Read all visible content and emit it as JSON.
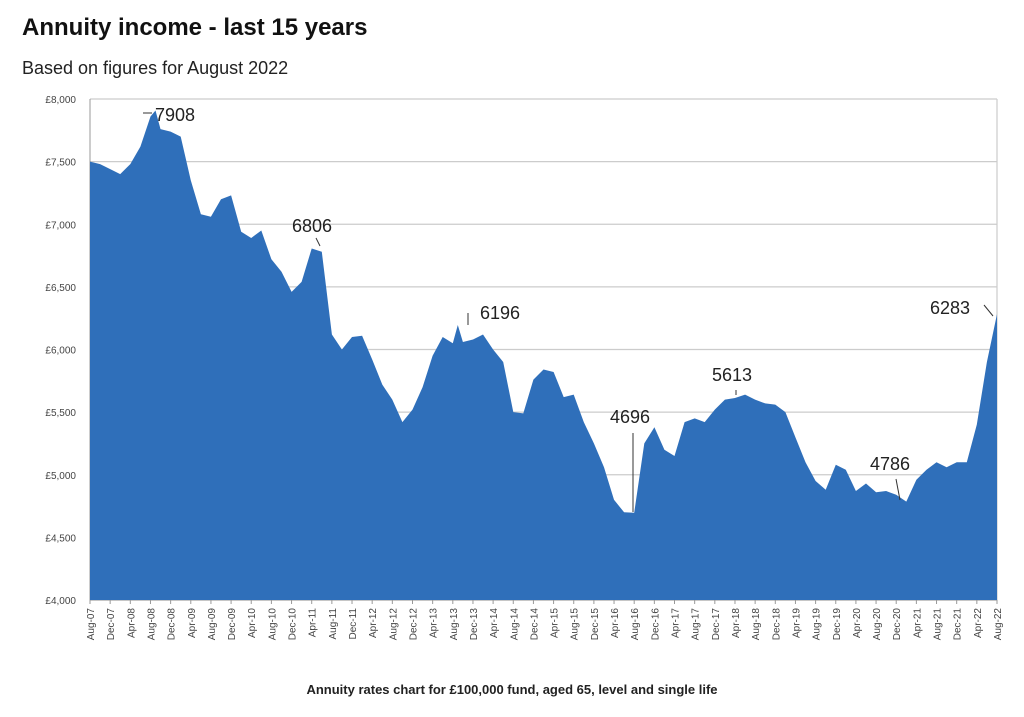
{
  "header": {
    "title": "Annuity income - last 15 years",
    "subtitle": "Based on figures for August 2022"
  },
  "caption": "Annuity rates chart for £100,000 fund, aged 65, level and single life",
  "colors": {
    "fill": "#2f6fba",
    "grid": "#cccccc",
    "axis": "#999999"
  },
  "chart_data": {
    "type": "area",
    "title": "Annuity income - last 15 years",
    "subtitle": "Based on figures for August 2022",
    "xlabel": "Annuity rates chart for £100,000 fund, aged 65, level and single life",
    "ylabel": "",
    "ylim": [
      4000,
      8000
    ],
    "grid": true,
    "legend": "none",
    "y_ticks": [
      "£4,000",
      "£4,500",
      "£5,000",
      "£5,500",
      "£6,000",
      "£6,500",
      "£7,000",
      "£7,500",
      "£8,000"
    ],
    "x_ticks": [
      "Aug-07",
      "Dec-07",
      "Apr-08",
      "Aug-08",
      "Dec-08",
      "Apr-09",
      "Aug-09",
      "Dec-09",
      "Apr-10",
      "Aug-10",
      "Dec-10",
      "Apr-11",
      "Aug-11",
      "Dec-11",
      "Apr-12",
      "Aug-12",
      "Dec-12",
      "Apr-13",
      "Aug-13",
      "Dec-13",
      "Apr-14",
      "Aug-14",
      "Dec-14",
      "Apr-15",
      "Aug-15",
      "Dec-15",
      "Apr-16",
      "Aug-16",
      "Dec-16",
      "Apr-17",
      "Aug-17",
      "Dec-17",
      "Apr-18",
      "Aug-18",
      "Dec-18",
      "Apr-19",
      "Aug-19",
      "Dec-19",
      "Apr-20",
      "Aug-20",
      "Dec-20",
      "Apr-21",
      "Aug-21",
      "Dec-21",
      "Apr-22",
      "Aug-22"
    ],
    "annotations": [
      {
        "label": "7908",
        "month_index": 13,
        "value": 7908
      },
      {
        "label": "6806",
        "month_index": 44,
        "value": 6806
      },
      {
        "label": "6196",
        "month_index": 73,
        "value": 6196
      },
      {
        "label": "4696",
        "month_index": 108,
        "value": 4696
      },
      {
        "label": "5613",
        "month_index": 128,
        "value": 5613
      },
      {
        "label": "4786",
        "month_index": 160,
        "value": 4786
      },
      {
        "label": "6283",
        "month_index": 180,
        "value": 6283
      }
    ],
    "x_months_from_aug07": [
      0,
      2,
      4,
      6,
      8,
      10,
      12,
      13,
      14,
      16,
      17,
      18,
      20,
      22,
      24,
      26,
      28,
      30,
      32,
      34,
      36,
      38,
      40,
      42,
      44,
      46,
      48,
      50,
      52,
      54,
      56,
      58,
      60,
      62,
      64,
      66,
      68,
      70,
      72,
      73,
      74,
      76,
      78,
      80,
      82,
      84,
      86,
      88,
      90,
      92,
      94,
      96,
      98,
      100,
      102,
      104,
      106,
      108,
      110,
      112,
      114,
      116,
      118,
      120,
      122,
      124,
      126,
      128,
      130,
      132,
      134,
      136,
      138,
      140,
      142,
      144,
      146,
      148,
      150,
      152,
      154,
      156,
      158,
      160,
      162,
      164,
      166,
      168,
      170,
      172,
      174,
      176,
      178,
      180
    ],
    "values": [
      7500,
      7480,
      7440,
      7400,
      7480,
      7620,
      7860,
      7908,
      7760,
      7740,
      7720,
      7700,
      7350,
      7080,
      7060,
      7200,
      7230,
      6940,
      6890,
      6950,
      6720,
      6620,
      6460,
      6540,
      6806,
      6780,
      6120,
      6000,
      6100,
      6110,
      5920,
      5720,
      5600,
      5420,
      5520,
      5700,
      5950,
      6100,
      6050,
      6196,
      6060,
      6080,
      6120,
      6000,
      5900,
      5500,
      5490,
      5760,
      5840,
      5820,
      5620,
      5640,
      5420,
      5250,
      5060,
      4800,
      4700,
      4696,
      5250,
      5380,
      5200,
      5150,
      5420,
      5450,
      5420,
      5520,
      5600,
      5613,
      5640,
      5600,
      5570,
      5560,
      5500,
      5300,
      5100,
      4950,
      4880,
      5080,
      5040,
      4870,
      4930,
      4860,
      4870,
      4840,
      4786,
      4960,
      5040,
      5100,
      5060,
      5100,
      5100,
      5400,
      5900,
      6283
    ]
  }
}
